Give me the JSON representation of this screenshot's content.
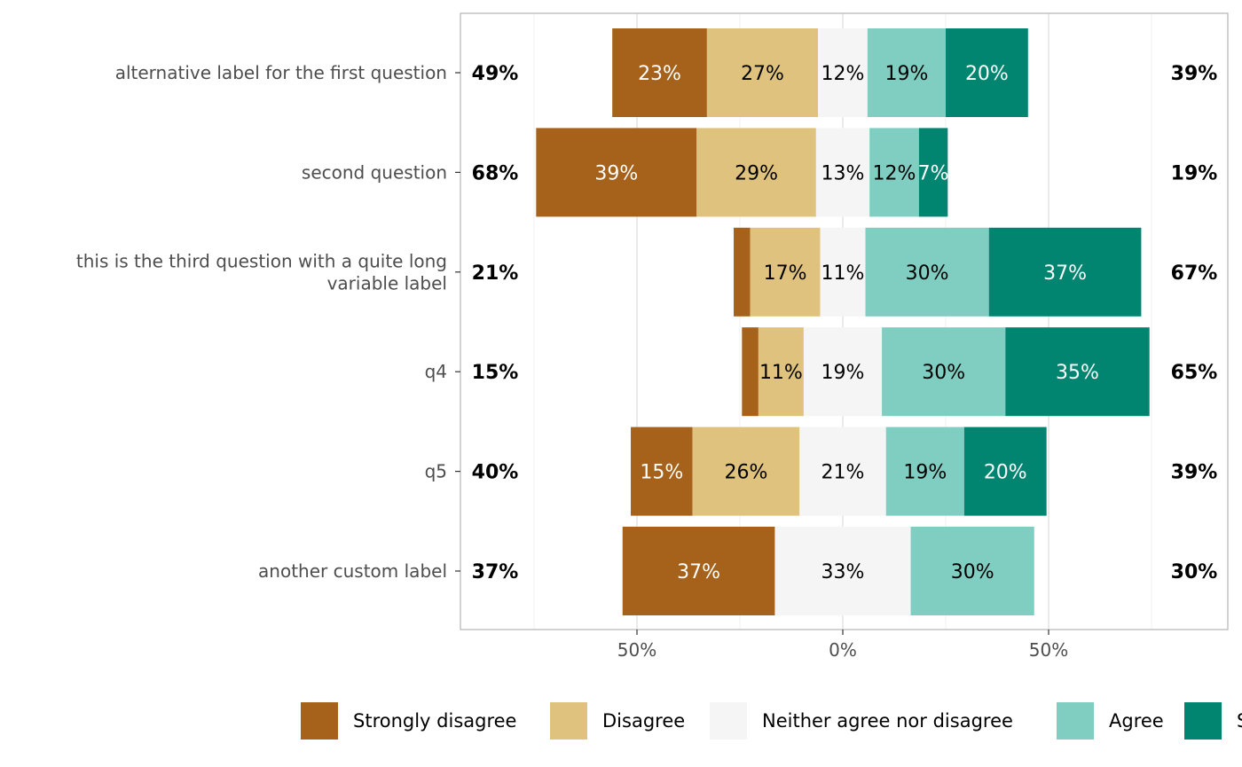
{
  "chart_data": {
    "type": "bar",
    "orientation": "horizontal",
    "stacked": "diverging",
    "xlim": [
      -93,
      93
    ],
    "x_ticks": [
      -50,
      0,
      50
    ],
    "x_tick_labels": [
      "50%",
      "0%",
      "50%"
    ],
    "grid": true,
    "legend_position": "bottom",
    "categories": [
      "alternative label for the first question",
      "second question",
      "this is the third question with a quite long\nvariable label",
      "q4",
      "q5",
      "another custom label"
    ],
    "series": [
      {
        "name": "Strongly disagree",
        "color": "#A6611A",
        "values": [
          23,
          39,
          4,
          4,
          15,
          37
        ]
      },
      {
        "name": "Disagree",
        "color": "#DFC27D",
        "values": [
          27,
          29,
          17,
          11,
          26,
          0
        ]
      },
      {
        "name": "Neither agree nor disagree",
        "color": "#F5F5F5",
        "values": [
          12,
          13,
          11,
          19,
          21,
          33
        ]
      },
      {
        "name": "Agree",
        "color": "#80CDC1",
        "values": [
          19,
          12,
          30,
          30,
          19,
          30
        ]
      },
      {
        "name": "Strongly agree",
        "color": "#018571",
        "values": [
          20,
          7,
          37,
          35,
          20,
          0
        ]
      }
    ],
    "left_totals": [
      "49%",
      "68%",
      "21%",
      "15%",
      "40%",
      "37%"
    ],
    "right_totals": [
      "39%",
      "19%",
      "67%",
      "65%",
      "39%",
      "30%"
    ]
  }
}
